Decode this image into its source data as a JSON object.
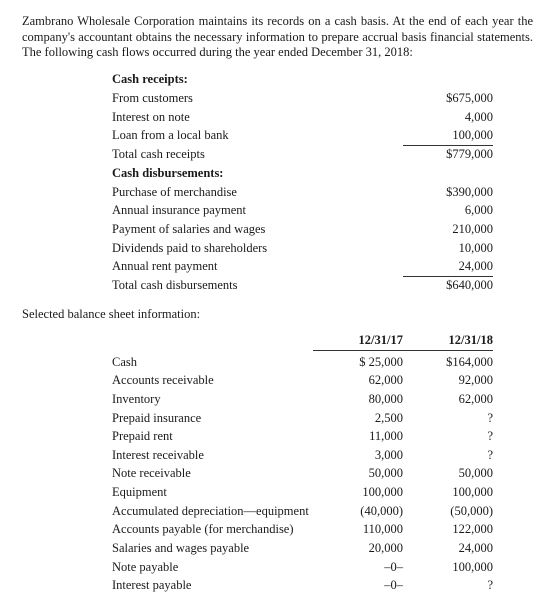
{
  "intro": "Zambrano Wholesale Corporation maintains its records on a cash basis. At the end of each year the company's accountant obtains the necessary information to prepare accrual basis financial statements. The following cash flows occurred during the year ended December 31, 2018:",
  "sect1": {
    "h1": "Cash receipts:",
    "r1": {
      "l": "From customers",
      "v": "$675,000"
    },
    "r2": {
      "l": "Interest on note",
      "v": "4,000"
    },
    "r3": {
      "l": "Loan from a local bank",
      "v": "100,000"
    },
    "r4": {
      "l": "Total cash receipts",
      "v": "$779,000"
    },
    "h2": "Cash disbursements:",
    "r5": {
      "l": "Purchase of merchandise",
      "v": "$390,000"
    },
    "r6": {
      "l": "Annual insurance payment",
      "v": "6,000"
    },
    "r7": {
      "l": "Payment of salaries and wages",
      "v": "210,000"
    },
    "r8": {
      "l": "Dividends paid to shareholders",
      "v": "10,000"
    },
    "r9": {
      "l": "Annual rent payment",
      "v": "24,000"
    },
    "r10": {
      "l": "Total cash disbursements",
      "v": "$640,000"
    }
  },
  "subhead": "Selected balance sheet information:",
  "cols": {
    "c1": "12/31/17",
    "c2": "12/31/18"
  },
  "bs": {
    "r1": {
      "l": "Cash",
      "v1": "$ 25,000",
      "v2": "$164,000"
    },
    "r2": {
      "l": "Accounts receivable",
      "v1": "62,000",
      "v2": "92,000"
    },
    "r3": {
      "l": "Inventory",
      "v1": "80,000",
      "v2": "62,000"
    },
    "r4": {
      "l": "Prepaid insurance",
      "v1": "2,500",
      "v2": "?"
    },
    "r5": {
      "l": "Prepaid rent",
      "v1": "11,000",
      "v2": "?"
    },
    "r6": {
      "l": "Interest receivable",
      "v1": "3,000",
      "v2": "?"
    },
    "r7": {
      "l": "Note receivable",
      "v1": "50,000",
      "v2": "50,000"
    },
    "r8": {
      "l": "Equipment",
      "v1": "100,000",
      "v2": "100,000"
    },
    "r9": {
      "l": "Accumulated depreciation—equipment",
      "v1": "(40,000)",
      "v2": "(50,000)"
    },
    "r10": {
      "l": "Accounts payable (for merchandise)",
      "v1": "110,000",
      "v2": "122,000"
    },
    "r11": {
      "l": "Salaries and wages payable",
      "v1": "20,000",
      "v2": "24,000"
    },
    "r12": {
      "l": "Note payable",
      "v1": "–0–",
      "v2": "100,000"
    },
    "r13": {
      "l": "Interest payable",
      "v1": "–0–",
      "v2": "?"
    }
  }
}
